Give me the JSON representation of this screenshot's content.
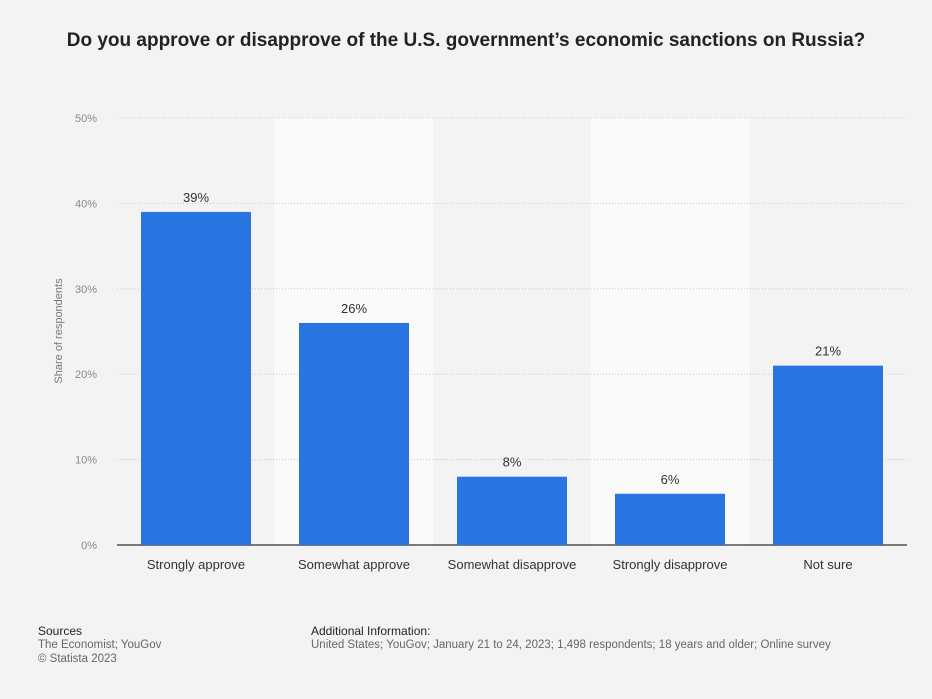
{
  "chart_data": {
    "type": "bar",
    "title": "Do you approve or disapprove of the U.S. government’s economic sanctions on Russia?",
    "ylabel": "Share of respondents",
    "xlabel": "",
    "categories": [
      "Strongly approve",
      "Somewhat approve",
      "Somewhat disapprove",
      "Strongly disapprove",
      "Not sure"
    ],
    "values": [
      39,
      26,
      8,
      6,
      21
    ],
    "value_labels": [
      "39%",
      "26%",
      "8%",
      "6%",
      "21%"
    ],
    "ylim": [
      0,
      50
    ],
    "yticks": [
      0,
      10,
      20,
      30,
      40,
      50
    ],
    "ytick_labels": [
      "0%",
      "10%",
      "20%",
      "30%",
      "40%",
      "50%"
    ],
    "grid": true,
    "bar_color": "#2874e0",
    "alt_band_color": "#fafafa"
  },
  "footer": {
    "sources_heading": "Sources",
    "sources_text": "The Economist; YouGov",
    "copyright": "© Statista 2023",
    "additional_heading": "Additional Information:",
    "additional_text": "United States; YouGov; January 21 to 24, 2023; 1,498 respondents; 18 years and older; Online survey"
  }
}
